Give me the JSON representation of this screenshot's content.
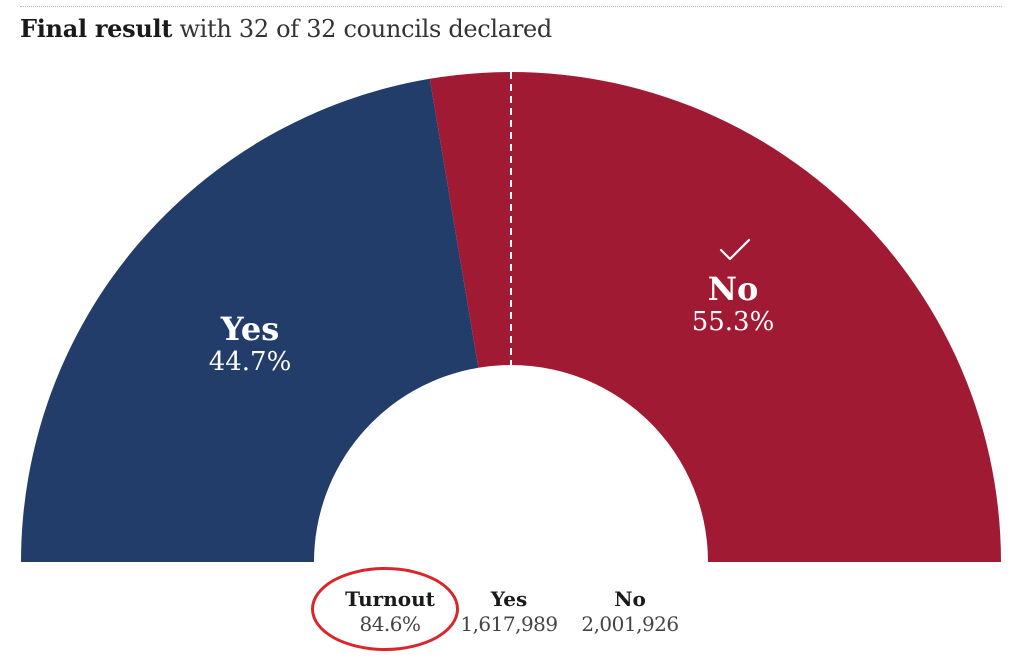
{
  "header": {
    "title_strong": "Final result",
    "title_rest": " with 32 of 32 councils declared"
  },
  "chart_data": {
    "type": "pie",
    "variant": "half-donut",
    "categories": [
      "Yes",
      "No"
    ],
    "values": [
      44.7,
      55.3
    ],
    "labels": [
      "44.7%",
      "55.3%"
    ],
    "winner": "No",
    "majority_marker": 50,
    "colors": [
      "#223d6a",
      "#a01a34"
    ]
  },
  "stats": {
    "turnout": {
      "label": "Turnout",
      "value": "84.6%"
    },
    "yes": {
      "label": "Yes",
      "value": "1,617,989"
    },
    "no": {
      "label": "No",
      "value": "2,001,926"
    }
  },
  "icons": {
    "winner": "checkmark-icon"
  }
}
